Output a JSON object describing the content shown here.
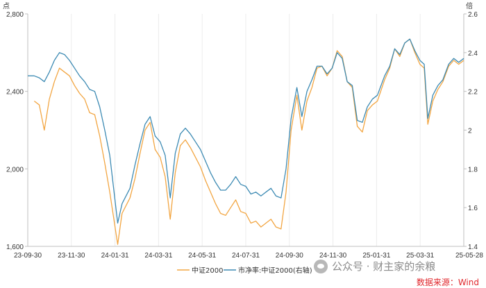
{
  "chart_data": {
    "type": "line",
    "left_axis": {
      "unit": "点",
      "ylim": [
        1600,
        2800
      ],
      "ticks": [
        "2,800",
        "2,400",
        "2,000",
        "1,600"
      ]
    },
    "right_axis": {
      "unit": "倍",
      "ylim": [
        1.4,
        2.6
      ],
      "ticks": [
        "2.6",
        "2.4",
        "2.2",
        "2",
        "1.8",
        "1.6",
        "1.4"
      ]
    },
    "x_ticks": [
      "23-09-30",
      "23-11-30",
      "24-01-31",
      "24-03-31",
      "24-05-31",
      "24-07-31",
      "24-09-30",
      "24-11-30",
      "25-01-31",
      "25-03-31",
      "25-05-28"
    ],
    "x_range": [
      "2023-09-30",
      "2025-05-28"
    ],
    "grid": "vertical",
    "legend_position": "bottom",
    "series": [
      {
        "name": "中证2000",
        "axis": "left",
        "color": "#f2a541",
        "points": [
          [
            "2023-10-09",
            2350
          ],
          [
            "2023-10-16",
            2330
          ],
          [
            "2023-10-23",
            2200
          ],
          [
            "2023-10-30",
            2360
          ],
          [
            "2023-11-06",
            2450
          ],
          [
            "2023-11-13",
            2520
          ],
          [
            "2023-11-20",
            2500
          ],
          [
            "2023-11-27",
            2480
          ],
          [
            "2023-12-04",
            2430
          ],
          [
            "2023-12-11",
            2390
          ],
          [
            "2023-12-18",
            2360
          ],
          [
            "2023-12-25",
            2290
          ],
          [
            "2024-01-01",
            2280
          ],
          [
            "2024-01-08",
            2170
          ],
          [
            "2024-01-15",
            2030
          ],
          [
            "2024-01-22",
            1880
          ],
          [
            "2024-02-02",
            1610
          ],
          [
            "2024-02-08",
            1770
          ],
          [
            "2024-02-19",
            1850
          ],
          [
            "2024-02-26",
            1950
          ],
          [
            "2024-03-04",
            2080
          ],
          [
            "2024-03-11",
            2200
          ],
          [
            "2024-03-18",
            2240
          ],
          [
            "2024-03-25",
            2100
          ],
          [
            "2024-04-01",
            2060
          ],
          [
            "2024-04-08",
            1960
          ],
          [
            "2024-04-15",
            1740
          ],
          [
            "2024-04-22",
            1980
          ],
          [
            "2024-04-29",
            2120
          ],
          [
            "2024-05-06",
            2150
          ],
          [
            "2024-05-13",
            2110
          ],
          [
            "2024-05-20",
            2060
          ],
          [
            "2024-05-27",
            2010
          ],
          [
            "2024-06-03",
            1940
          ],
          [
            "2024-06-10",
            1880
          ],
          [
            "2024-06-17",
            1820
          ],
          [
            "2024-06-24",
            1770
          ],
          [
            "2024-07-01",
            1760
          ],
          [
            "2024-07-08",
            1800
          ],
          [
            "2024-07-15",
            1840
          ],
          [
            "2024-07-22",
            1780
          ],
          [
            "2024-07-29",
            1770
          ],
          [
            "2024-08-05",
            1720
          ],
          [
            "2024-08-12",
            1730
          ],
          [
            "2024-08-19",
            1700
          ],
          [
            "2024-08-26",
            1720
          ],
          [
            "2024-09-02",
            1740
          ],
          [
            "2024-09-09",
            1700
          ],
          [
            "2024-09-16",
            1690
          ],
          [
            "2024-09-23",
            1880
          ],
          [
            "2024-09-30",
            2200
          ],
          [
            "2024-10-08",
            2380
          ],
          [
            "2024-10-15",
            2200
          ],
          [
            "2024-10-22",
            2350
          ],
          [
            "2024-10-29",
            2420
          ],
          [
            "2024-11-05",
            2520
          ],
          [
            "2024-11-12",
            2530
          ],
          [
            "2024-11-19",
            2480
          ],
          [
            "2024-11-26",
            2520
          ],
          [
            "2024-12-03",
            2610
          ],
          [
            "2024-12-10",
            2580
          ],
          [
            "2024-12-17",
            2450
          ],
          [
            "2024-12-24",
            2420
          ],
          [
            "2024-12-31",
            2220
          ],
          [
            "2025-01-07",
            2190
          ],
          [
            "2025-01-14",
            2300
          ],
          [
            "2025-01-21",
            2330
          ],
          [
            "2025-01-28",
            2350
          ],
          [
            "2025-02-07",
            2460
          ],
          [
            "2025-02-14",
            2520
          ],
          [
            "2025-02-21",
            2620
          ],
          [
            "2025-02-28",
            2580
          ],
          [
            "2025-03-07",
            2650
          ],
          [
            "2025-03-14",
            2670
          ],
          [
            "2025-03-21",
            2600
          ],
          [
            "2025-03-28",
            2540
          ],
          [
            "2025-04-03",
            2520
          ],
          [
            "2025-04-08",
            2230
          ],
          [
            "2025-04-15",
            2350
          ],
          [
            "2025-04-22",
            2410
          ],
          [
            "2025-04-29",
            2450
          ],
          [
            "2025-05-07",
            2530
          ],
          [
            "2025-05-14",
            2560
          ],
          [
            "2025-05-21",
            2540
          ],
          [
            "2025-05-28",
            2560
          ]
        ]
      },
      {
        "name": "市净率:中证2000(右轴)",
        "axis": "right",
        "color": "#3c8ab3",
        "points": [
          [
            "2023-09-30",
            2.28
          ],
          [
            "2023-10-09",
            2.28
          ],
          [
            "2023-10-16",
            2.27
          ],
          [
            "2023-10-23",
            2.25
          ],
          [
            "2023-10-30",
            2.3
          ],
          [
            "2023-11-06",
            2.36
          ],
          [
            "2023-11-13",
            2.4
          ],
          [
            "2023-11-20",
            2.39
          ],
          [
            "2023-11-27",
            2.36
          ],
          [
            "2023-12-04",
            2.32
          ],
          [
            "2023-12-11",
            2.28
          ],
          [
            "2023-12-18",
            2.25
          ],
          [
            "2023-12-25",
            2.21
          ],
          [
            "2024-01-01",
            2.2
          ],
          [
            "2024-01-08",
            2.12
          ],
          [
            "2024-01-15",
            2.0
          ],
          [
            "2024-01-22",
            1.87
          ],
          [
            "2024-02-02",
            1.52
          ],
          [
            "2024-02-08",
            1.62
          ],
          [
            "2024-02-19",
            1.7
          ],
          [
            "2024-02-26",
            1.82
          ],
          [
            "2024-03-04",
            1.93
          ],
          [
            "2024-03-11",
            2.03
          ],
          [
            "2024-03-18",
            2.07
          ],
          [
            "2024-03-25",
            1.97
          ],
          [
            "2024-04-01",
            1.94
          ],
          [
            "2024-04-08",
            1.87
          ],
          [
            "2024-04-15",
            1.65
          ],
          [
            "2024-04-22",
            1.88
          ],
          [
            "2024-04-29",
            1.98
          ],
          [
            "2024-05-06",
            2.01
          ],
          [
            "2024-05-13",
            1.98
          ],
          [
            "2024-05-20",
            1.94
          ],
          [
            "2024-05-27",
            1.9
          ],
          [
            "2024-06-03",
            1.84
          ],
          [
            "2024-06-10",
            1.78
          ],
          [
            "2024-06-17",
            1.73
          ],
          [
            "2024-06-24",
            1.69
          ],
          [
            "2024-07-01",
            1.69
          ],
          [
            "2024-07-08",
            1.72
          ],
          [
            "2024-07-15",
            1.76
          ],
          [
            "2024-07-22",
            1.72
          ],
          [
            "2024-07-29",
            1.71
          ],
          [
            "2024-08-05",
            1.67
          ],
          [
            "2024-08-12",
            1.68
          ],
          [
            "2024-08-19",
            1.66
          ],
          [
            "2024-08-26",
            1.68
          ],
          [
            "2024-09-02",
            1.7
          ],
          [
            "2024-09-09",
            1.66
          ],
          [
            "2024-09-16",
            1.65
          ],
          [
            "2024-09-23",
            1.8
          ],
          [
            "2024-09-30",
            2.06
          ],
          [
            "2024-10-08",
            2.22
          ],
          [
            "2024-10-15",
            2.07
          ],
          [
            "2024-10-22",
            2.2
          ],
          [
            "2024-10-29",
            2.26
          ],
          [
            "2024-11-05",
            2.33
          ],
          [
            "2024-11-12",
            2.33
          ],
          [
            "2024-11-19",
            2.29
          ],
          [
            "2024-11-26",
            2.32
          ],
          [
            "2024-12-03",
            2.4
          ],
          [
            "2024-12-10",
            2.37
          ],
          [
            "2024-12-17",
            2.25
          ],
          [
            "2024-12-24",
            2.23
          ],
          [
            "2024-12-31",
            2.05
          ],
          [
            "2025-01-07",
            2.04
          ],
          [
            "2025-01-14",
            2.12
          ],
          [
            "2025-01-21",
            2.16
          ],
          [
            "2025-01-28",
            2.18
          ],
          [
            "2025-02-07",
            2.28
          ],
          [
            "2025-02-14",
            2.33
          ],
          [
            "2025-02-21",
            2.42
          ],
          [
            "2025-02-28",
            2.39
          ],
          [
            "2025-03-07",
            2.45
          ],
          [
            "2025-03-14",
            2.47
          ],
          [
            "2025-03-21",
            2.41
          ],
          [
            "2025-03-28",
            2.36
          ],
          [
            "2025-04-03",
            2.34
          ],
          [
            "2025-04-08",
            2.06
          ],
          [
            "2025-04-15",
            2.18
          ],
          [
            "2025-04-22",
            2.23
          ],
          [
            "2025-04-29",
            2.26
          ],
          [
            "2025-05-07",
            2.34
          ],
          [
            "2025-05-14",
            2.37
          ],
          [
            "2025-05-21",
            2.35
          ],
          [
            "2025-05-28",
            2.37
          ]
        ]
      }
    ]
  },
  "watermark": {
    "text": "公众号 · 财主家的余粮",
    "icon": "wechat-logo-icon"
  },
  "source": "数据来源：Wind"
}
